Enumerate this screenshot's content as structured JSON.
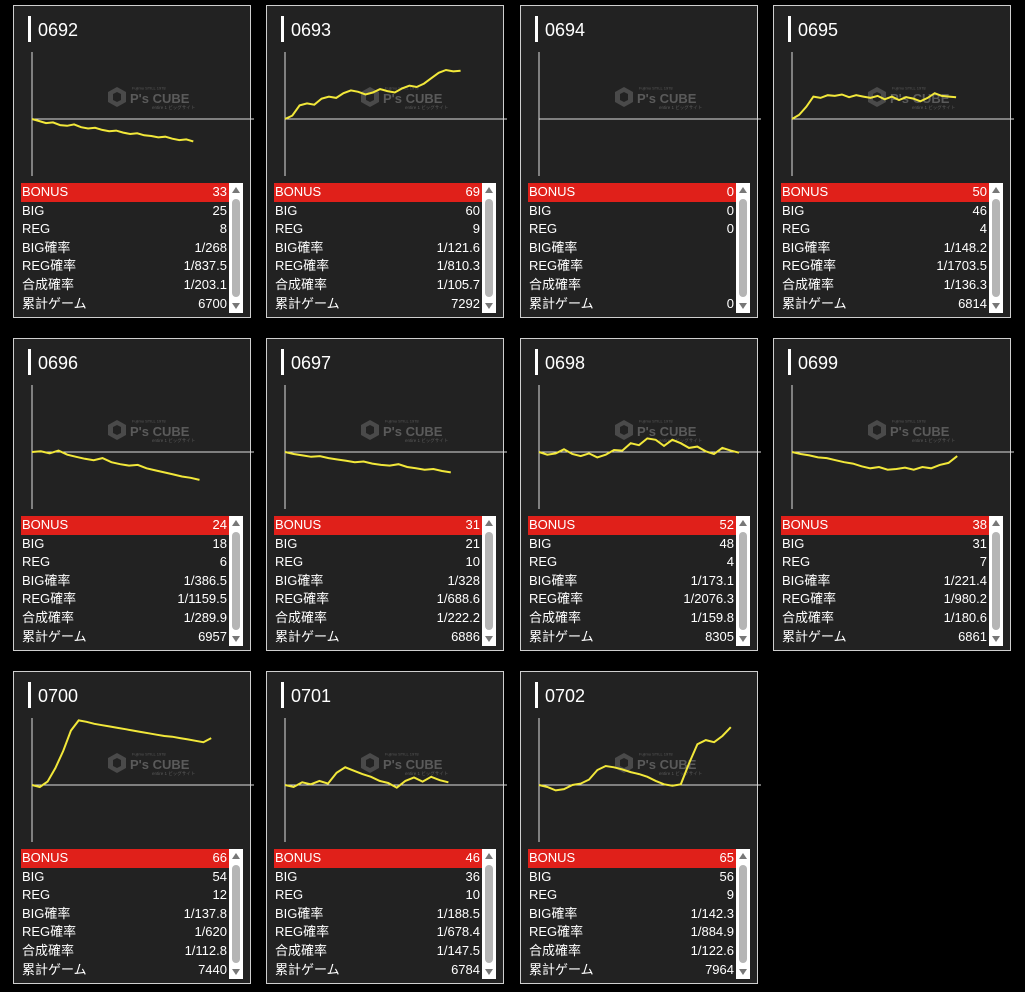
{
  "watermark": {
    "brand": "P's CUBE",
    "tagline_top": "Fujimu STILL 1978",
    "tagline_bottom": "entire 1 ビッグサイト"
  },
  "colors": {
    "card_bg": "#222222",
    "bonus_bar": "#e0201a",
    "line": "#f2e83a",
    "axis": "#dddddd"
  },
  "labels": {
    "bonus": "BONUS",
    "big": "BIG",
    "reg": "REG",
    "big_rate": "BIG確率",
    "reg_rate": "REG確率",
    "total_rate": "合成確率",
    "games": "累計ゲーム"
  },
  "machines": [
    {
      "id": "0692",
      "bonus": "33",
      "big": "25",
      "reg": "8",
      "big_rate": "1/268",
      "reg_rate": "1/837.5",
      "total_rate": "1/203.1",
      "games": "6700",
      "trend": [
        0,
        -0.3,
        -0.6,
        -0.5,
        -0.9,
        -1,
        -0.8,
        -1.2,
        -1.4,
        -1.3,
        -1.6,
        -1.8,
        -1.7,
        -2,
        -2.2,
        -2.1,
        -2.4,
        -2.5,
        -2.7,
        -2.6,
        -2.9,
        -3.1,
        -3.0,
        -3.3
      ]
    },
    {
      "id": "0693",
      "bonus": "69",
      "big": "60",
      "reg": "9",
      "big_rate": "1/121.6",
      "reg_rate": "1/810.3",
      "total_rate": "1/105.7",
      "games": "7292",
      "trend": [
        0,
        0.5,
        2,
        2.3,
        2.1,
        3,
        3.3,
        3.1,
        3.8,
        4.2,
        4,
        3.6,
        3.9,
        4.4,
        4.1,
        3.9,
        4.5,
        4.9,
        4.7,
        5.2,
        6,
        6.8,
        7.2,
        7,
        7.1
      ]
    },
    {
      "id": "0694",
      "bonus": "0",
      "big": "0",
      "reg": "0",
      "big_rate": "",
      "reg_rate": "",
      "total_rate": "",
      "games": "0",
      "trend": []
    },
    {
      "id": "0695",
      "bonus": "50",
      "big": "46",
      "reg": "4",
      "big_rate": "1/148.2",
      "reg_rate": "1/1703.5",
      "total_rate": "1/136.3",
      "games": "6814",
      "trend": [
        0,
        0.6,
        1.8,
        3.3,
        3.1,
        3.5,
        3.4,
        3.6,
        3.2,
        3.5,
        3.3,
        3.1,
        3.4,
        2.9,
        3.3,
        2.8,
        3.2,
        3,
        2.6,
        3.1,
        3.8,
        3.4,
        3.3,
        3.2
      ]
    },
    {
      "id": "0696",
      "bonus": "24",
      "big": "18",
      "reg": "6",
      "big_rate": "1/386.5",
      "reg_rate": "1/1159.5",
      "total_rate": "1/289.9",
      "games": "6957",
      "trend": [
        0,
        0.1,
        -0.2,
        0.2,
        -0.4,
        -0.7,
        -1,
        -1.2,
        -0.9,
        -1.5,
        -1.8,
        -2,
        -1.9,
        -2.4,
        -2.7,
        -3,
        -3.3,
        -3.6,
        -3.8,
        -4.1
      ]
    },
    {
      "id": "0697",
      "bonus": "31",
      "big": "21",
      "reg": "10",
      "big_rate": "1/328",
      "reg_rate": "1/688.6",
      "total_rate": "1/222.2",
      "games": "6886",
      "trend": [
        0,
        -0.3,
        -0.5,
        -0.7,
        -0.6,
        -0.9,
        -1.1,
        -1.3,
        -1.5,
        -1.4,
        -1.7,
        -1.9,
        -2,
        -1.8,
        -2.2,
        -2.4,
        -2.6,
        -2.5,
        -2.8,
        -3
      ]
    },
    {
      "id": "0698",
      "bonus": "52",
      "big": "48",
      "reg": "4",
      "big_rate": "1/173.1",
      "reg_rate": "1/2076.3",
      "total_rate": "1/159.8",
      "games": "8305",
      "trend": [
        0,
        -0.4,
        -0.2,
        0.4,
        -0.3,
        -0.6,
        -0.2,
        -0.8,
        -0.4,
        0.3,
        0.2,
        1.3,
        1,
        2,
        1.8,
        0.9,
        1.8,
        1.3,
        0.6,
        0.8,
        0.1,
        -0.3,
        0.6,
        0.2,
        -0.1
      ]
    },
    {
      "id": "0699",
      "bonus": "38",
      "big": "31",
      "reg": "7",
      "big_rate": "1/221.4",
      "reg_rate": "1/980.2",
      "total_rate": "1/180.6",
      "games": "6861",
      "trend": [
        0,
        -0.3,
        -0.5,
        -0.8,
        -0.9,
        -1.2,
        -1.5,
        -1.7,
        -2.1,
        -2.4,
        -2.2,
        -2.6,
        -2.5,
        -2.3,
        -2.6,
        -2.2,
        -2.4,
        -1.9,
        -1.6,
        -0.6
      ]
    },
    {
      "id": "0700",
      "bonus": "66",
      "big": "54",
      "reg": "12",
      "big_rate": "1/137.8",
      "reg_rate": "1/620",
      "total_rate": "1/112.8",
      "games": "7440",
      "trend": [
        0,
        -0.3,
        0.5,
        2.5,
        5,
        8,
        9.5,
        9.3,
        9,
        8.8,
        8.6,
        8.4,
        8.2,
        8,
        7.8,
        7.6,
        7.4,
        7.2,
        7.1,
        6.9,
        6.7,
        6.5,
        6.3,
        6.9
      ]
    },
    {
      "id": "0701",
      "bonus": "46",
      "big": "36",
      "reg": "10",
      "big_rate": "1/188.5",
      "reg_rate": "1/678.4",
      "total_rate": "1/147.5",
      "games": "6784",
      "trend": [
        0,
        -0.3,
        0.4,
        0.1,
        0.6,
        0.2,
        1.8,
        2.6,
        2.1,
        1.6,
        1.2,
        0.6,
        0.3,
        -0.4,
        0.6,
        1.1,
        0.5,
        1.2,
        0.7,
        0.4
      ]
    },
    {
      "id": "0702",
      "bonus": "65",
      "big": "56",
      "reg": "9",
      "big_rate": "1/142.3",
      "reg_rate": "1/884.9",
      "total_rate": "1/122.6",
      "games": "7964",
      "trend": [
        0,
        -0.3,
        -0.8,
        -0.6,
        0,
        0.2,
        0.8,
        2.2,
        2.8,
        2.6,
        2.3,
        1.9,
        1.6,
        1.2,
        0.6,
        0.1,
        -0.1,
        0.1,
        3.2,
        6,
        6.6,
        6.3,
        7.2,
        8.5
      ]
    }
  ]
}
